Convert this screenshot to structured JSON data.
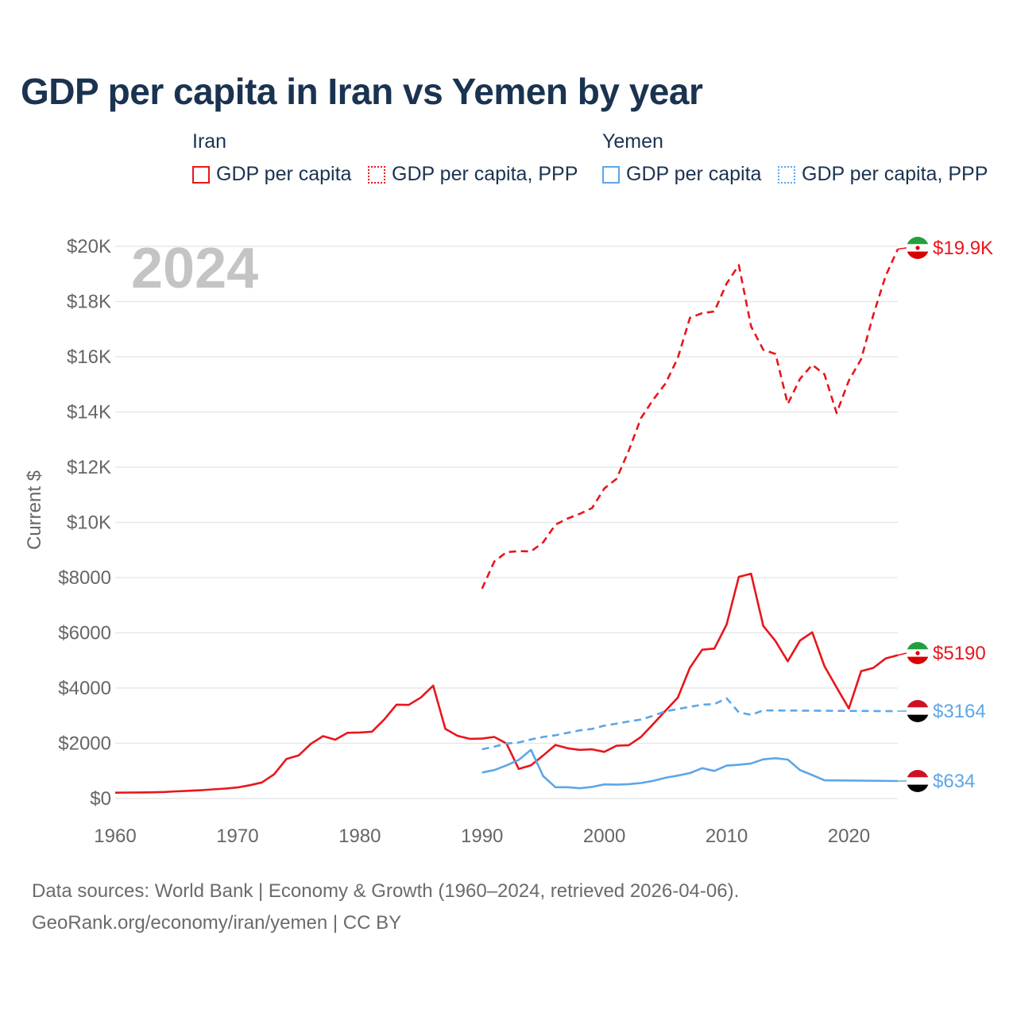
{
  "chart_data": {
    "type": "line",
    "title": "GDP per capita in Iran vs Yemen by year",
    "ylabel": "Current $",
    "xlabel": "",
    "year_label": "2024",
    "xlim": [
      1960,
      2024
    ],
    "ylim": [
      0,
      20000
    ],
    "x_ticks": [
      "1960",
      "1970",
      "1980",
      "1990",
      "2000",
      "2010",
      "2020"
    ],
    "y_ticks": [
      {
        "value": 0,
        "label": "$0"
      },
      {
        "value": 2000,
        "label": "$2000"
      },
      {
        "value": 4000,
        "label": "$4000"
      },
      {
        "value": 6000,
        "label": "$6000"
      },
      {
        "value": 8000,
        "label": "$8000"
      },
      {
        "value": 10000,
        "label": "$10K"
      },
      {
        "value": 12000,
        "label": "$12K"
      },
      {
        "value": 14000,
        "label": "$14K"
      },
      {
        "value": 16000,
        "label": "$16K"
      },
      {
        "value": 18000,
        "label": "$18K"
      },
      {
        "value": 20000,
        "label": "$20K"
      }
    ],
    "legend": {
      "groups": [
        {
          "name": "Iran",
          "items": [
            "GDP per capita",
            "GDP per capita, PPP"
          ]
        },
        {
          "name": "Yemen",
          "items": [
            "GDP per capita",
            "GDP per capita, PPP"
          ]
        }
      ]
    },
    "series": [
      {
        "name": "Iran GDP per capita",
        "country": "Iran",
        "style": "solid",
        "color": "#e8161b",
        "end_label": "$5190",
        "x": [
          1960,
          1961,
          1962,
          1963,
          1964,
          1965,
          1966,
          1967,
          1968,
          1969,
          1970,
          1971,
          1972,
          1973,
          1974,
          1975,
          1976,
          1977,
          1978,
          1979,
          1980,
          1981,
          1982,
          1983,
          1984,
          1985,
          1986,
          1987,
          1988,
          1989,
          1990,
          1991,
          1992,
          1993,
          1994,
          1995,
          1996,
          1997,
          1998,
          1999,
          2000,
          2001,
          2002,
          2003,
          2004,
          2005,
          2006,
          2007,
          2008,
          2009,
          2010,
          2011,
          2012,
          2013,
          2014,
          2015,
          2016,
          2017,
          2018,
          2019,
          2020,
          2021,
          2022,
          2023,
          2024
        ],
        "values": [
          210,
          215,
          220,
          225,
          235,
          260,
          280,
          300,
          330,
          360,
          400,
          480,
          580,
          880,
          1430,
          1560,
          1980,
          2260,
          2130,
          2380,
          2390,
          2420,
          2860,
          3400,
          3390,
          3660,
          4090,
          2520,
          2270,
          2160,
          2170,
          2230,
          1990,
          1070,
          1200,
          1560,
          1940,
          1820,
          1760,
          1780,
          1690,
          1910,
          1930,
          2230,
          2700,
          3180,
          3650,
          4740,
          5390,
          5430,
          6300,
          8030,
          8140,
          6250,
          5700,
          4970,
          5720,
          6020,
          4790,
          4020,
          3260,
          4610,
          4730,
          5070,
          5190
        ]
      },
      {
        "name": "Iran GDP per capita, PPP",
        "country": "Iran",
        "style": "dashed",
        "color": "#e8161b",
        "end_label": "$19.9K",
        "x": [
          1990,
          1991,
          1992,
          1993,
          1994,
          1995,
          1996,
          1997,
          1998,
          1999,
          2000,
          2001,
          2002,
          2003,
          2004,
          2005,
          2006,
          2007,
          2008,
          2009,
          2010,
          2011,
          2012,
          2013,
          2014,
          2015,
          2016,
          2017,
          2018,
          2019,
          2020,
          2021,
          2022,
          2023,
          2024
        ],
        "values": [
          7600,
          8580,
          8920,
          8960,
          8950,
          9280,
          9920,
          10140,
          10310,
          10520,
          11230,
          11580,
          12600,
          13780,
          14450,
          15030,
          15950,
          17410,
          17580,
          17640,
          18650,
          19320,
          17100,
          16250,
          16100,
          14290,
          15200,
          15710,
          15360,
          13960,
          15140,
          15910,
          17520,
          18920,
          19900
        ]
      },
      {
        "name": "Yemen GDP per capita",
        "country": "Yemen",
        "style": "solid",
        "color": "#5da6e8",
        "end_label": "$634",
        "x": [
          1990,
          1991,
          1992,
          1993,
          1994,
          1995,
          1996,
          1997,
          1998,
          1999,
          2000,
          2001,
          2002,
          2003,
          2004,
          2005,
          2006,
          2007,
          2008,
          2009,
          2010,
          2011,
          2012,
          2013,
          2014,
          2015,
          2016,
          2017,
          2018,
          2024
        ],
        "values": [
          940,
          1030,
          1200,
          1400,
          1760,
          810,
          410,
          410,
          370,
          420,
          510,
          500,
          520,
          560,
          640,
          750,
          830,
          920,
          1100,
          1000,
          1190,
          1220,
          1270,
          1420,
          1460,
          1410,
          1030,
          850,
          660,
          634
        ]
      },
      {
        "name": "Yemen GDP per capita, PPP",
        "country": "Yemen",
        "style": "dashed",
        "color": "#5da6e8",
        "end_label": "$3164",
        "x": [
          1990,
          1991,
          1992,
          1993,
          1994,
          1995,
          1996,
          1997,
          1998,
          1999,
          2000,
          2001,
          2002,
          2003,
          2004,
          2005,
          2006,
          2007,
          2008,
          2009,
          2010,
          2011,
          2012,
          2013,
          2024
        ],
        "values": [
          1780,
          1880,
          1990,
          2030,
          2140,
          2230,
          2290,
          2380,
          2470,
          2520,
          2640,
          2710,
          2790,
          2860,
          3000,
          3160,
          3240,
          3320,
          3400,
          3420,
          3630,
          3120,
          3030,
          3190,
          3164
        ]
      }
    ]
  },
  "sources": {
    "line1": "Data sources: World Bank | Economy & Growth (1960–2024, retrieved 2026-04-06).",
    "line2": "GeoRank.org/economy/iran/yemen | CC BY"
  }
}
